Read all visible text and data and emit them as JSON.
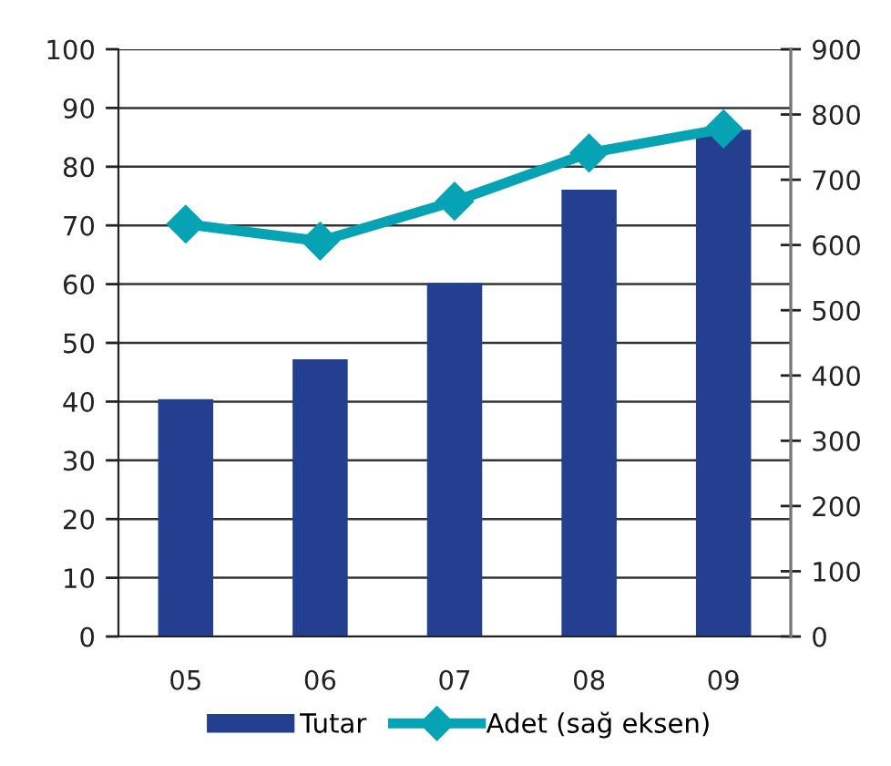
{
  "chart_data": {
    "type": "bar",
    "categories": [
      "05",
      "06",
      "07",
      "08",
      "09"
    ],
    "series": [
      {
        "name": "Tutar",
        "color": "#243f8f",
        "values": [
          40.4,
          47.2,
          60.2,
          76.1,
          86.3
        ]
      },
      {
        "name": "Adet (sağ eksen)",
        "type": "line",
        "axis": "y2",
        "color": "#05a3b4",
        "marker": "diamond",
        "line_style": "solid",
        "values": [
          632,
          606,
          667,
          741,
          778
        ]
      }
    ],
    "ylim": [
      0,
      100
    ],
    "yticks": [
      0,
      10,
      20,
      30,
      40,
      50,
      60,
      70,
      80,
      90,
      100
    ],
    "y2lim": [
      0,
      900
    ],
    "y2ticks": [
      0,
      100,
      200,
      300,
      400,
      500,
      600,
      700,
      800,
      900
    ],
    "grid": "y",
    "legend": "bottom"
  }
}
